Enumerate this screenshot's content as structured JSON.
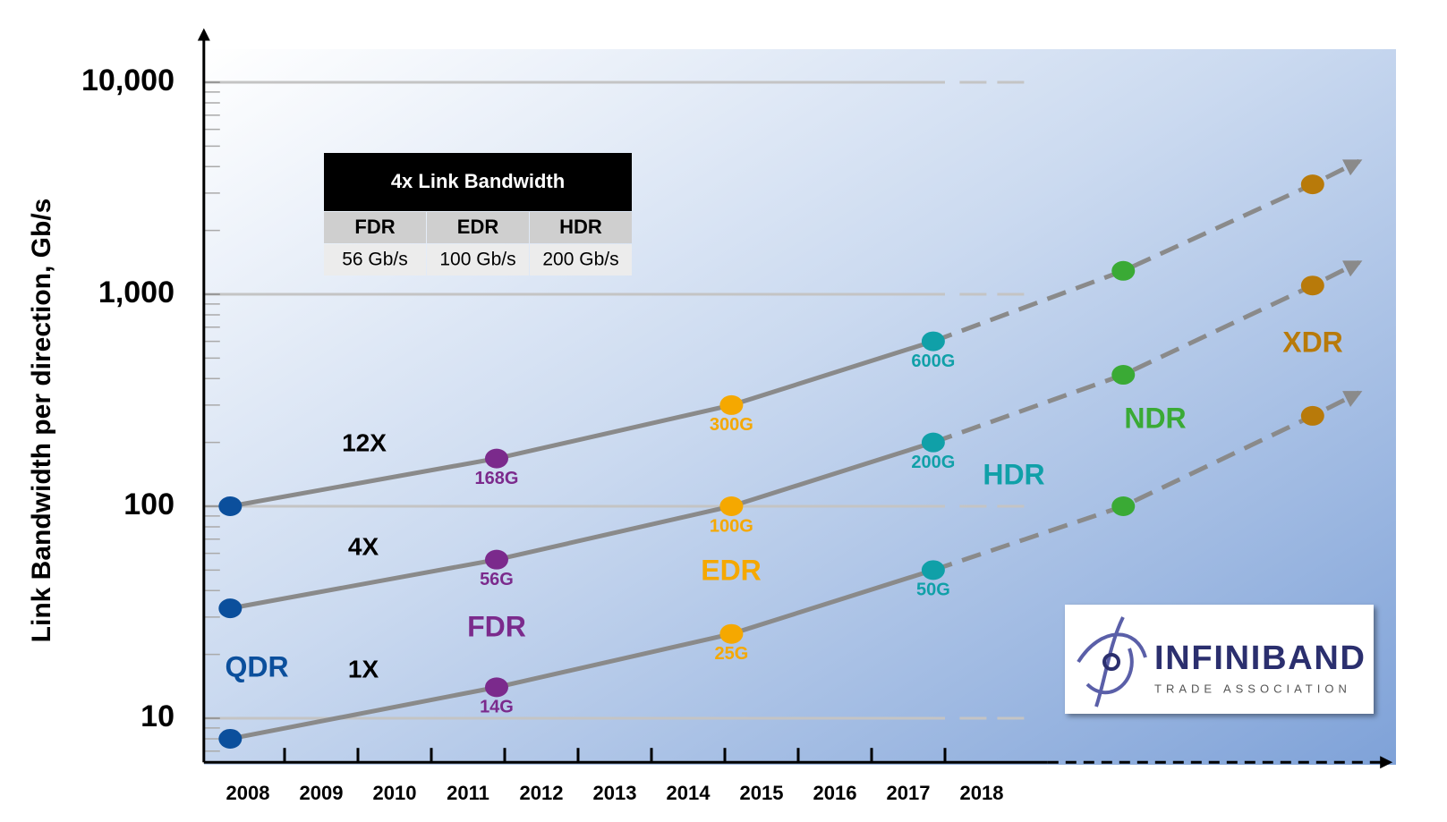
{
  "chart_data": {
    "type": "line",
    "y_label": "Link Bandwidth per direction, Gb/s",
    "log_scale": true,
    "x": [
      2007.76,
      2011.39,
      2014.59,
      2017.34,
      2019.93,
      2022.51
    ],
    "xlim": [
      2007.4,
      2023.6
    ],
    "xticks": [
      2008,
      2009,
      2010,
      2011,
      2012,
      2013,
      2014,
      2015,
      2016,
      2017,
      2018
    ],
    "ylim": [
      6.2,
      18000
    ],
    "yticks": [
      10,
      100,
      {
        "value": 1000,
        "label": "1,000"
      },
      {
        "value": 10000,
        "label": "10,000"
      }
    ],
    "grid": true,
    "generations": {
      "names": [
        "QDR",
        "FDR",
        "EDR",
        "HDR",
        "NDR",
        "XDR"
      ],
      "colors": [
        "#0b4f9c",
        "#7b2a8c",
        "#f5a800",
        "#10a0a8",
        "#3aaa35",
        "#b87a0a"
      ]
    },
    "series": [
      {
        "name": "12X",
        "color": "#8a8a8a",
        "values": [
          100,
          168,
          300,
          600,
          1290,
          3300
        ],
        "value_labels": [
          null,
          "168G",
          "300G",
          "600G",
          null,
          null
        ]
      },
      {
        "name": "4X",
        "color": "#8a8a8a",
        "values": [
          33,
          56,
          100,
          200,
          417,
          1100
        ],
        "value_labels": [
          null,
          "56G",
          "100G",
          "200G",
          null,
          null
        ]
      },
      {
        "name": "1X",
        "color": "#8a8a8a",
        "values": [
          8,
          14,
          25,
          50,
          100,
          267
        ],
        "value_labels": [
          null,
          "14G",
          "25G",
          "50G",
          null,
          null
        ]
      }
    ]
  },
  "table": {
    "title": "4x Link Bandwidth",
    "header": [
      "FDR",
      "EDR",
      "HDR"
    ],
    "rows": [
      [
        "56 Gb/s",
        "100 Gb/s",
        "200 Gb/s"
      ]
    ]
  },
  "logo": {
    "name": "INFINIBAND",
    "tagline": "TRADE ASSOCIATION"
  }
}
